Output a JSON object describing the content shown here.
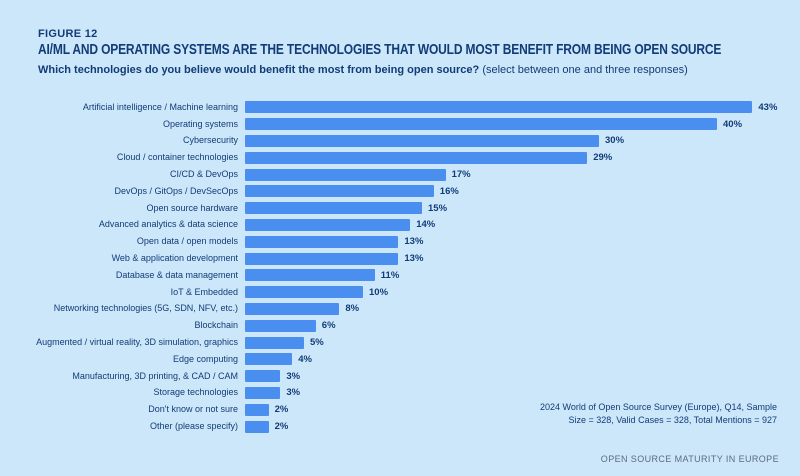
{
  "figure_label": "FIGURE 12",
  "title": "AI/ML AND OPERATING SYSTEMS ARE THE TECHNOLOGIES THAT WOULD MOST BENEFIT FROM BEING OPEN SOURCE",
  "question_bold": "Which technologies do you believe would benefit the most from being open source?",
  "question_note": " (select between one and three responses)",
  "chart_data": {
    "type": "bar",
    "orientation": "horizontal",
    "title": "Which technologies do you believe would benefit the most from being open source?",
    "value_suffix": "%",
    "xlim": [
      0,
      45
    ],
    "grid": false,
    "legend": "none",
    "value_labels_shown": true,
    "categories": [
      "Artificial intelligence / Machine learning",
      "Operating systems",
      "Cybersecurity",
      "Cloud / container technologies",
      "CI/CD & DevOps",
      "DevOps / GitOps / DevSecOps",
      "Open source hardware",
      "Advanced analytics & data science",
      "Open data / open models",
      "Web & application development",
      "Database & data management",
      "IoT & Embedded",
      "Networking technologies (5G, SDN, NFV, etc.)",
      "Blockchain",
      "Augmented / virtual reality, 3D simulation, graphics",
      "Edge computing",
      "Manufacturing, 3D printing, & CAD / CAM",
      "Storage technologies",
      "Don't know or not sure",
      "Other (please specify)"
    ],
    "values": [
      43,
      40,
      30,
      29,
      17,
      16,
      15,
      14,
      13,
      13,
      11,
      10,
      8,
      6,
      5,
      4,
      3,
      3,
      2,
      2
    ]
  },
  "source_note_line1": "2024 World of Open Source Survey (Europe), Q14, Sample",
  "source_note_line2": "Size = 328, Valid Cases = 328, Total Mentions = 927",
  "footer": "OPEN SOURCE MATURITY IN EUROPE",
  "colors": {
    "background": "#cde7fa",
    "bar": "#4a8ff0",
    "text": "#113c77",
    "footer_text": "#5c6b82"
  }
}
